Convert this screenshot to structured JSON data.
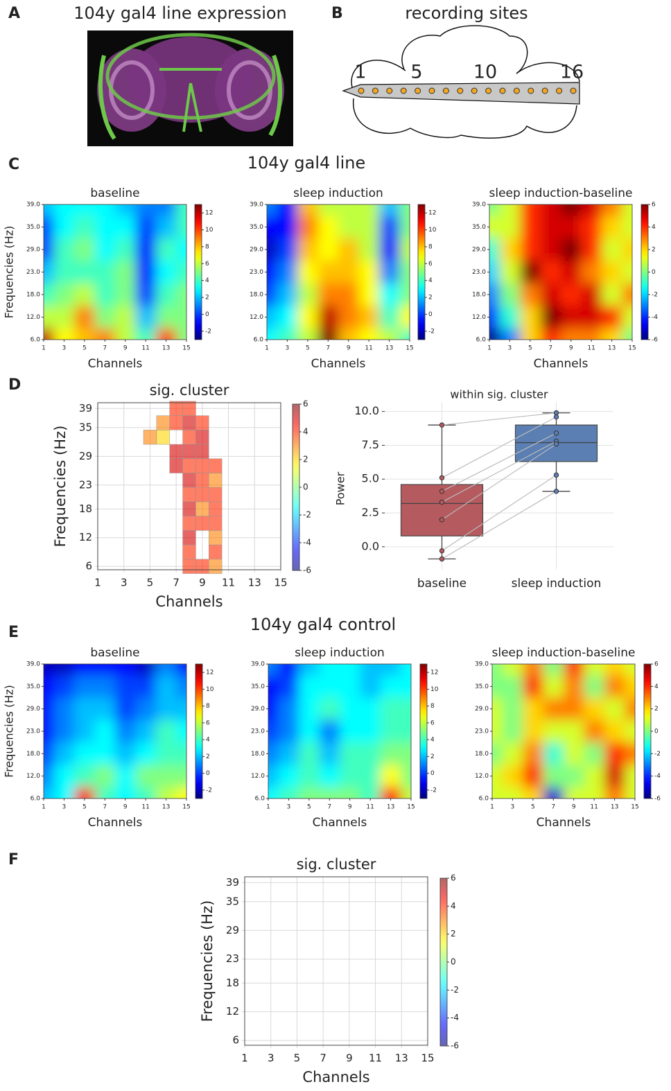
{
  "panel_labels": [
    "A",
    "B",
    "C",
    "D",
    "E",
    "F"
  ],
  "panel_a": {
    "title": "104y gal4 line expression"
  },
  "panel_b": {
    "title": "recording sites",
    "site_labels": [
      1,
      5,
      10,
      16
    ]
  },
  "heatmap_axes": {
    "channels": [
      1,
      3,
      5,
      7,
      9,
      11,
      13,
      15
    ],
    "frequencies": [
      "39.0",
      "35.0",
      "29.0",
      "23.0",
      "18.0",
      "12.0",
      "6.0"
    ],
    "xlabel": "Channels",
    "ylabel": "Frequencies (Hz)",
    "colormap": "jet"
  },
  "panel_c": {
    "title": "104y gal4 line",
    "heatmaps": [
      {
        "title": "baseline",
        "clim": [
          -3,
          13
        ],
        "cbar_ticks": [
          -2,
          0,
          2,
          4,
          6,
          8,
          10,
          12
        ],
        "z": [
          [
            2,
            3,
            3,
            3,
            2,
            1,
            1,
            4
          ],
          [
            0,
            3,
            4,
            3,
            3,
            0,
            2,
            4
          ],
          [
            0,
            4,
            5,
            3,
            4,
            -1,
            4,
            3
          ],
          [
            2,
            4,
            4,
            4,
            5,
            -1,
            3,
            4
          ],
          [
            4,
            5,
            6,
            4,
            5,
            0,
            4,
            5
          ],
          [
            6,
            6,
            9,
            5,
            6,
            2,
            5,
            5
          ],
          [
            12,
            7,
            8,
            9,
            6,
            4,
            10,
            5
          ]
        ]
      },
      {
        "title": "sleep induction",
        "clim": [
          -3,
          13
        ],
        "cbar_ticks": [
          -2,
          0,
          2,
          4,
          6,
          8,
          10,
          12
        ],
        "z": [
          [
            1,
            -1,
            8,
            6,
            6,
            6,
            2,
            5
          ],
          [
            -1,
            -1,
            9,
            7,
            6,
            6,
            0,
            5
          ],
          [
            -2,
            0,
            8,
            7,
            8,
            6,
            -1,
            6
          ],
          [
            -1,
            1,
            7,
            8,
            8,
            7,
            1,
            5
          ],
          [
            0,
            2,
            6,
            9,
            9,
            7,
            3,
            5
          ],
          [
            2,
            3,
            7,
            12,
            9,
            8,
            4,
            7
          ],
          [
            3,
            4,
            6,
            13,
            8,
            7,
            6,
            4
          ]
        ]
      },
      {
        "title": "sleep induction-baseline",
        "clim": [
          -6,
          6
        ],
        "cbar_ticks": [
          -6,
          -4,
          -2,
          0,
          2,
          4,
          6
        ],
        "z": [
          [
            0,
            1,
            4,
            5,
            6,
            5,
            3,
            1
          ],
          [
            1,
            1,
            4,
            5,
            5,
            4,
            2,
            1
          ],
          [
            -1,
            2,
            4,
            5,
            6,
            4,
            1,
            2
          ],
          [
            -2,
            1,
            6,
            4,
            5,
            3,
            2,
            1
          ],
          [
            -3,
            0,
            3,
            5,
            4,
            5,
            1,
            3
          ],
          [
            -4,
            -1,
            2,
            6,
            5,
            5,
            4,
            1
          ],
          [
            -6,
            -3,
            2,
            4,
            3,
            3,
            2,
            0
          ]
        ]
      }
    ]
  },
  "panel_d": {
    "cluster": {
      "title": "sig. cluster",
      "xlabel": "Channels",
      "ylabel": "Frequencies (Hz)",
      "xlim": [
        1,
        15
      ],
      "ylim": [
        5.3,
        40.2
      ],
      "xticks": [
        1,
        3,
        5,
        7,
        9,
        11,
        13,
        15
      ],
      "yticks": [
        39,
        35,
        29,
        23,
        18,
        12,
        6
      ],
      "clim": [
        -6,
        6
      ],
      "cbar_ticks": [
        -6,
        -4,
        -2,
        0,
        2,
        4,
        6
      ],
      "cell_width": 1,
      "cell_height": 3,
      "cells": {
        "x": [
          5,
          6,
          6,
          7,
          7,
          7,
          7,
          8,
          8,
          8,
          8,
          8,
          8,
          8,
          8,
          8,
          8,
          8,
          8,
          9,
          9,
          9,
          9,
          9,
          9,
          9,
          9,
          9,
          10,
          10,
          10,
          10,
          10,
          10,
          10,
          10
        ],
        "y": [
          33,
          36,
          33,
          39,
          36,
          30,
          27,
          39,
          36,
          33,
          30,
          27,
          24,
          21,
          18,
          15,
          12,
          9,
          6,
          36,
          33,
          30,
          27,
          24,
          21,
          18,
          15,
          6,
          27,
          24,
          21,
          18,
          15,
          12,
          9,
          6
        ],
        "values": [
          3,
          3,
          2,
          4,
          4,
          5,
          5,
          4,
          5,
          4,
          5,
          4,
          5,
          4,
          5,
          4,
          5,
          4,
          4,
          4,
          5,
          5,
          4,
          4,
          4,
          3,
          4,
          4,
          4,
          3,
          4,
          4,
          4,
          3,
          4,
          3
        ]
      }
    },
    "boxplot": {
      "title": "within sig. cluster",
      "ylabel": "Power",
      "ylim": [
        -1.7,
        10.7
      ],
      "yticks": [
        {
          "value": 0,
          "label": "0.0"
        },
        2.5,
        {
          "value": 5,
          "label": "5.0"
        },
        7.5,
        {
          "value": 10,
          "label": "10.0"
        }
      ],
      "categories": [
        "baseline",
        "sleep induction"
      ],
      "boxes": [
        {
          "color": "#b55a5e",
          "whislo": -0.9,
          "q1": 0.8,
          "med": 3.2,
          "q3": 4.6,
          "whishi": 9.0,
          "points": [
            9.0,
            5.1,
            4.1,
            3.3,
            2.0,
            -0.3,
            -0.9
          ]
        },
        {
          "color": "#5b7fb3",
          "whislo": 4.1,
          "q1": 6.3,
          "med": 7.7,
          "q3": 9.0,
          "whishi": 9.9,
          "points": [
            9.9,
            9.6,
            8.4,
            7.8,
            7.6,
            5.3,
            4.1
          ]
        }
      ]
    }
  },
  "panel_e": {
    "title": "104y gal4 control",
    "heatmaps": [
      {
        "title": "baseline",
        "clim": [
          -3,
          13
        ],
        "cbar_ticks": [
          -2,
          0,
          2,
          4,
          6,
          8,
          10,
          12
        ],
        "z": [
          [
            -2,
            -2,
            -1,
            -1,
            -1,
            -2,
            1,
            -1
          ],
          [
            -1,
            0,
            1,
            1,
            0,
            0,
            2,
            1
          ],
          [
            -1,
            1,
            2,
            2,
            0,
            1,
            2,
            2
          ],
          [
            -1,
            1,
            2,
            3,
            1,
            2,
            4,
            3
          ],
          [
            0,
            2,
            3,
            3,
            2,
            3,
            4,
            4
          ],
          [
            1,
            3,
            4,
            5,
            3,
            5,
            5,
            5
          ],
          [
            2,
            3,
            11,
            4,
            3,
            4,
            6,
            7
          ]
        ]
      },
      {
        "title": "sleep induction",
        "clim": [
          -3,
          13
        ],
        "cbar_ticks": [
          -2,
          0,
          2,
          4,
          6,
          8,
          10,
          12
        ],
        "z": [
          [
            1,
            -1,
            2,
            3,
            3,
            2,
            2,
            3
          ],
          [
            -1,
            0,
            3,
            3,
            3,
            2,
            3,
            3
          ],
          [
            -1,
            1,
            3,
            4,
            3,
            3,
            4,
            4
          ],
          [
            0,
            1,
            3,
            1,
            3,
            3,
            4,
            4
          ],
          [
            1,
            2,
            4,
            2,
            4,
            4,
            5,
            5
          ],
          [
            2,
            3,
            4,
            3,
            4,
            4,
            7,
            5
          ],
          [
            3,
            4,
            5,
            5,
            5,
            4,
            11,
            6
          ]
        ]
      },
      {
        "title": "sleep induction-baseline",
        "clim": [
          -6,
          6
        ],
        "cbar_ticks": [
          -6,
          -4,
          -2,
          0,
          2,
          4,
          6
        ],
        "z": [
          [
            0,
            1,
            3,
            0,
            4,
            1,
            2,
            1
          ],
          [
            0,
            0,
            4,
            1,
            3,
            0,
            3,
            2
          ],
          [
            1,
            0,
            2,
            3,
            3,
            2,
            1,
            3
          ],
          [
            1,
            0,
            2,
            1,
            1,
            3,
            2,
            1
          ],
          [
            0,
            1,
            3,
            -1,
            1,
            0,
            4,
            3
          ],
          [
            1,
            2,
            4,
            0,
            0,
            1,
            5,
            1
          ],
          [
            1,
            1,
            2,
            -5,
            1,
            1,
            3,
            1
          ]
        ]
      }
    ]
  },
  "panel_f": {
    "cluster": {
      "title": "sig. cluster",
      "xlabel": "Channels",
      "ylabel": "Frequencies (Hz)",
      "xlim": [
        1,
        15
      ],
      "ylim": [
        5,
        40.2
      ],
      "xticks": [
        1,
        3,
        5,
        7,
        9,
        11,
        13,
        15
      ],
      "yticks": [
        39,
        35,
        29,
        23,
        18,
        12,
        6
      ],
      "clim": [
        -6,
        6
      ],
      "cbar_ticks": [
        -6,
        -4,
        -2,
        0,
        2,
        4,
        6
      ]
    }
  }
}
